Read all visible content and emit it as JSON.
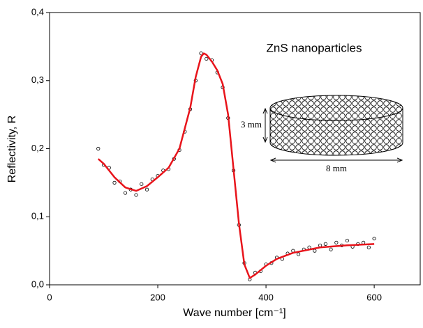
{
  "chart_data": {
    "type": "scatter-fit",
    "x_label": "Wave number [cm⁻¹]",
    "y_label": "Reflectivity, R",
    "annotations": [
      "ZnS nanoparticles",
      "3 mm",
      "8 mm"
    ],
    "xlim": [
      0,
      685
    ],
    "ylim": [
      0,
      0.4
    ],
    "xticks": [
      0,
      200,
      400,
      600
    ],
    "yticks": [
      {
        "value": 0,
        "label": "0,0"
      },
      {
        "value": 0.1,
        "label": "0,1"
      },
      {
        "value": 0.2,
        "label": "0,2"
      },
      {
        "value": 0.3,
        "label": "0,3"
      },
      {
        "value": 0.4,
        "label": "0,4"
      }
    ],
    "series": [
      {
        "style": "points",
        "color": "#000000",
        "x": [
          90,
          100,
          110,
          120,
          130,
          140,
          150,
          160,
          170,
          180,
          190,
          200,
          210,
          220,
          230,
          240,
          250,
          260,
          270,
          280,
          290,
          300,
          310,
          320,
          330,
          340,
          350,
          360,
          370,
          380,
          390,
          400,
          410,
          420,
          430,
          440,
          450,
          460,
          470,
          480,
          490,
          500,
          510,
          520,
          530,
          540,
          550,
          560,
          570,
          580,
          590,
          600
        ],
        "values": [
          0.2,
          0.176,
          0.172,
          0.15,
          0.152,
          0.135,
          0.14,
          0.132,
          0.148,
          0.14,
          0.155,
          0.16,
          0.168,
          0.17,
          0.185,
          0.198,
          0.225,
          0.258,
          0.3,
          0.34,
          0.332,
          0.33,
          0.312,
          0.29,
          0.245,
          0.168,
          0.088,
          0.032,
          0.008,
          0.018,
          0.02,
          0.03,
          0.032,
          0.04,
          0.038,
          0.046,
          0.05,
          0.045,
          0.052,
          0.055,
          0.05,
          0.058,
          0.06,
          0.052,
          0.062,
          0.058,
          0.065,
          0.056,
          0.06,
          0.062,
          0.055,
          0.068
        ]
      },
      {
        "style": "line",
        "color": "#e8141b",
        "x": [
          90,
          100,
          120,
          140,
          160,
          180,
          200,
          220,
          240,
          260,
          270,
          280,
          285,
          290,
          300,
          310,
          320,
          330,
          340,
          350,
          360,
          370,
          380,
          400,
          420,
          450,
          500,
          550,
          600
        ],
        "values": [
          0.185,
          0.178,
          0.158,
          0.143,
          0.138,
          0.145,
          0.158,
          0.172,
          0.2,
          0.26,
          0.305,
          0.335,
          0.34,
          0.338,
          0.328,
          0.315,
          0.295,
          0.25,
          0.17,
          0.09,
          0.03,
          0.01,
          0.015,
          0.028,
          0.038,
          0.047,
          0.055,
          0.058,
          0.06
        ]
      }
    ]
  }
}
